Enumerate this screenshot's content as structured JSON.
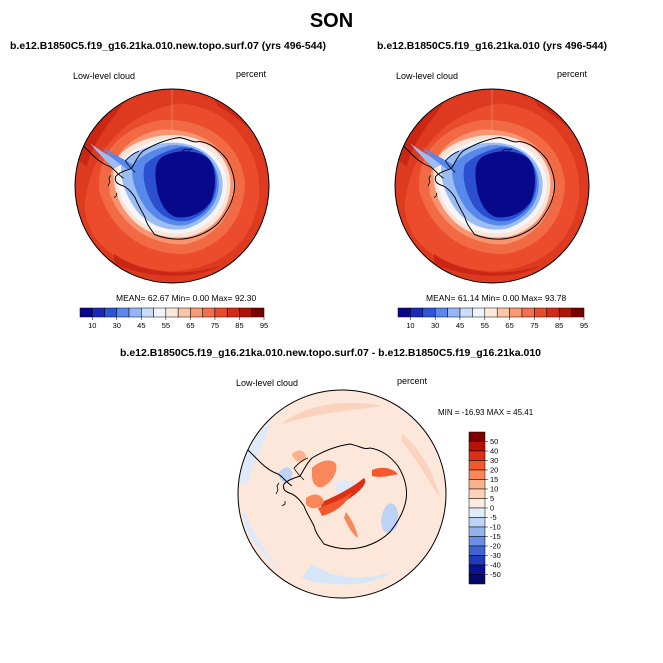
{
  "title": "SON",
  "panels": [
    {
      "title": "b.e12.B1850C5.f19_g16.21ka.010.new.topo.surf.07 (yrs 496-544)",
      "variable": "Low-level cloud",
      "units": "percent",
      "mean_label": "MEAN=",
      "mean": "62.67",
      "min_label": "Min=",
      "min": "0.00",
      "max_label": "Max=",
      "max": "92.30"
    },
    {
      "title": "b.e12.B1850C5.f19_g16.21ka.010 (yrs 496-544)",
      "variable": "Low-level cloud",
      "units": "percent",
      "mean_label": "MEAN=",
      "mean": "61.14",
      "min_label": "Min=",
      "min": "0.00",
      "max_label": "Max=",
      "max": "93.78"
    }
  ],
  "diff": {
    "title": "b.e12.B1850C5.f19_g16.21ka.010.new.topo.surf.07 - b.e12.B1850C5.f19_g16.21ka.010",
    "variable": "Low-level cloud",
    "units": "percent",
    "minmax": "MIN = -16.93 MAX =  45.41"
  },
  "colorbar_top": {
    "labels": [
      "10",
      "30",
      "45",
      "55",
      "65",
      "75",
      "85",
      "95"
    ],
    "colors": [
      "#08088a",
      "#1a2ab8",
      "#2e55d6",
      "#5c88ec",
      "#95b6f4",
      "#c9dcfa",
      "#eef3fc",
      "#fde8dc",
      "#fbc5a6",
      "#f89a74",
      "#f2704d",
      "#e84a2c",
      "#d42a18",
      "#b01408",
      "#7d0000"
    ]
  },
  "colorbar_diff": {
    "labels": [
      "50",
      "40",
      "30",
      "20",
      "15",
      "10",
      "5",
      "0",
      "-5",
      "-10",
      "-15",
      "-20",
      "-30",
      "-40",
      "-50"
    ],
    "colors": [
      "#7d0000",
      "#b51208",
      "#dd2e16",
      "#f4582c",
      "#f9875a",
      "#fbb18a",
      "#fdd3bc",
      "#fdeae0",
      "#e0ecfb",
      "#bcd3f6",
      "#92b3ee",
      "#6a90e4",
      "#4064d2",
      "#223ab8",
      "#0a128f",
      "#050a6a"
    ]
  }
}
